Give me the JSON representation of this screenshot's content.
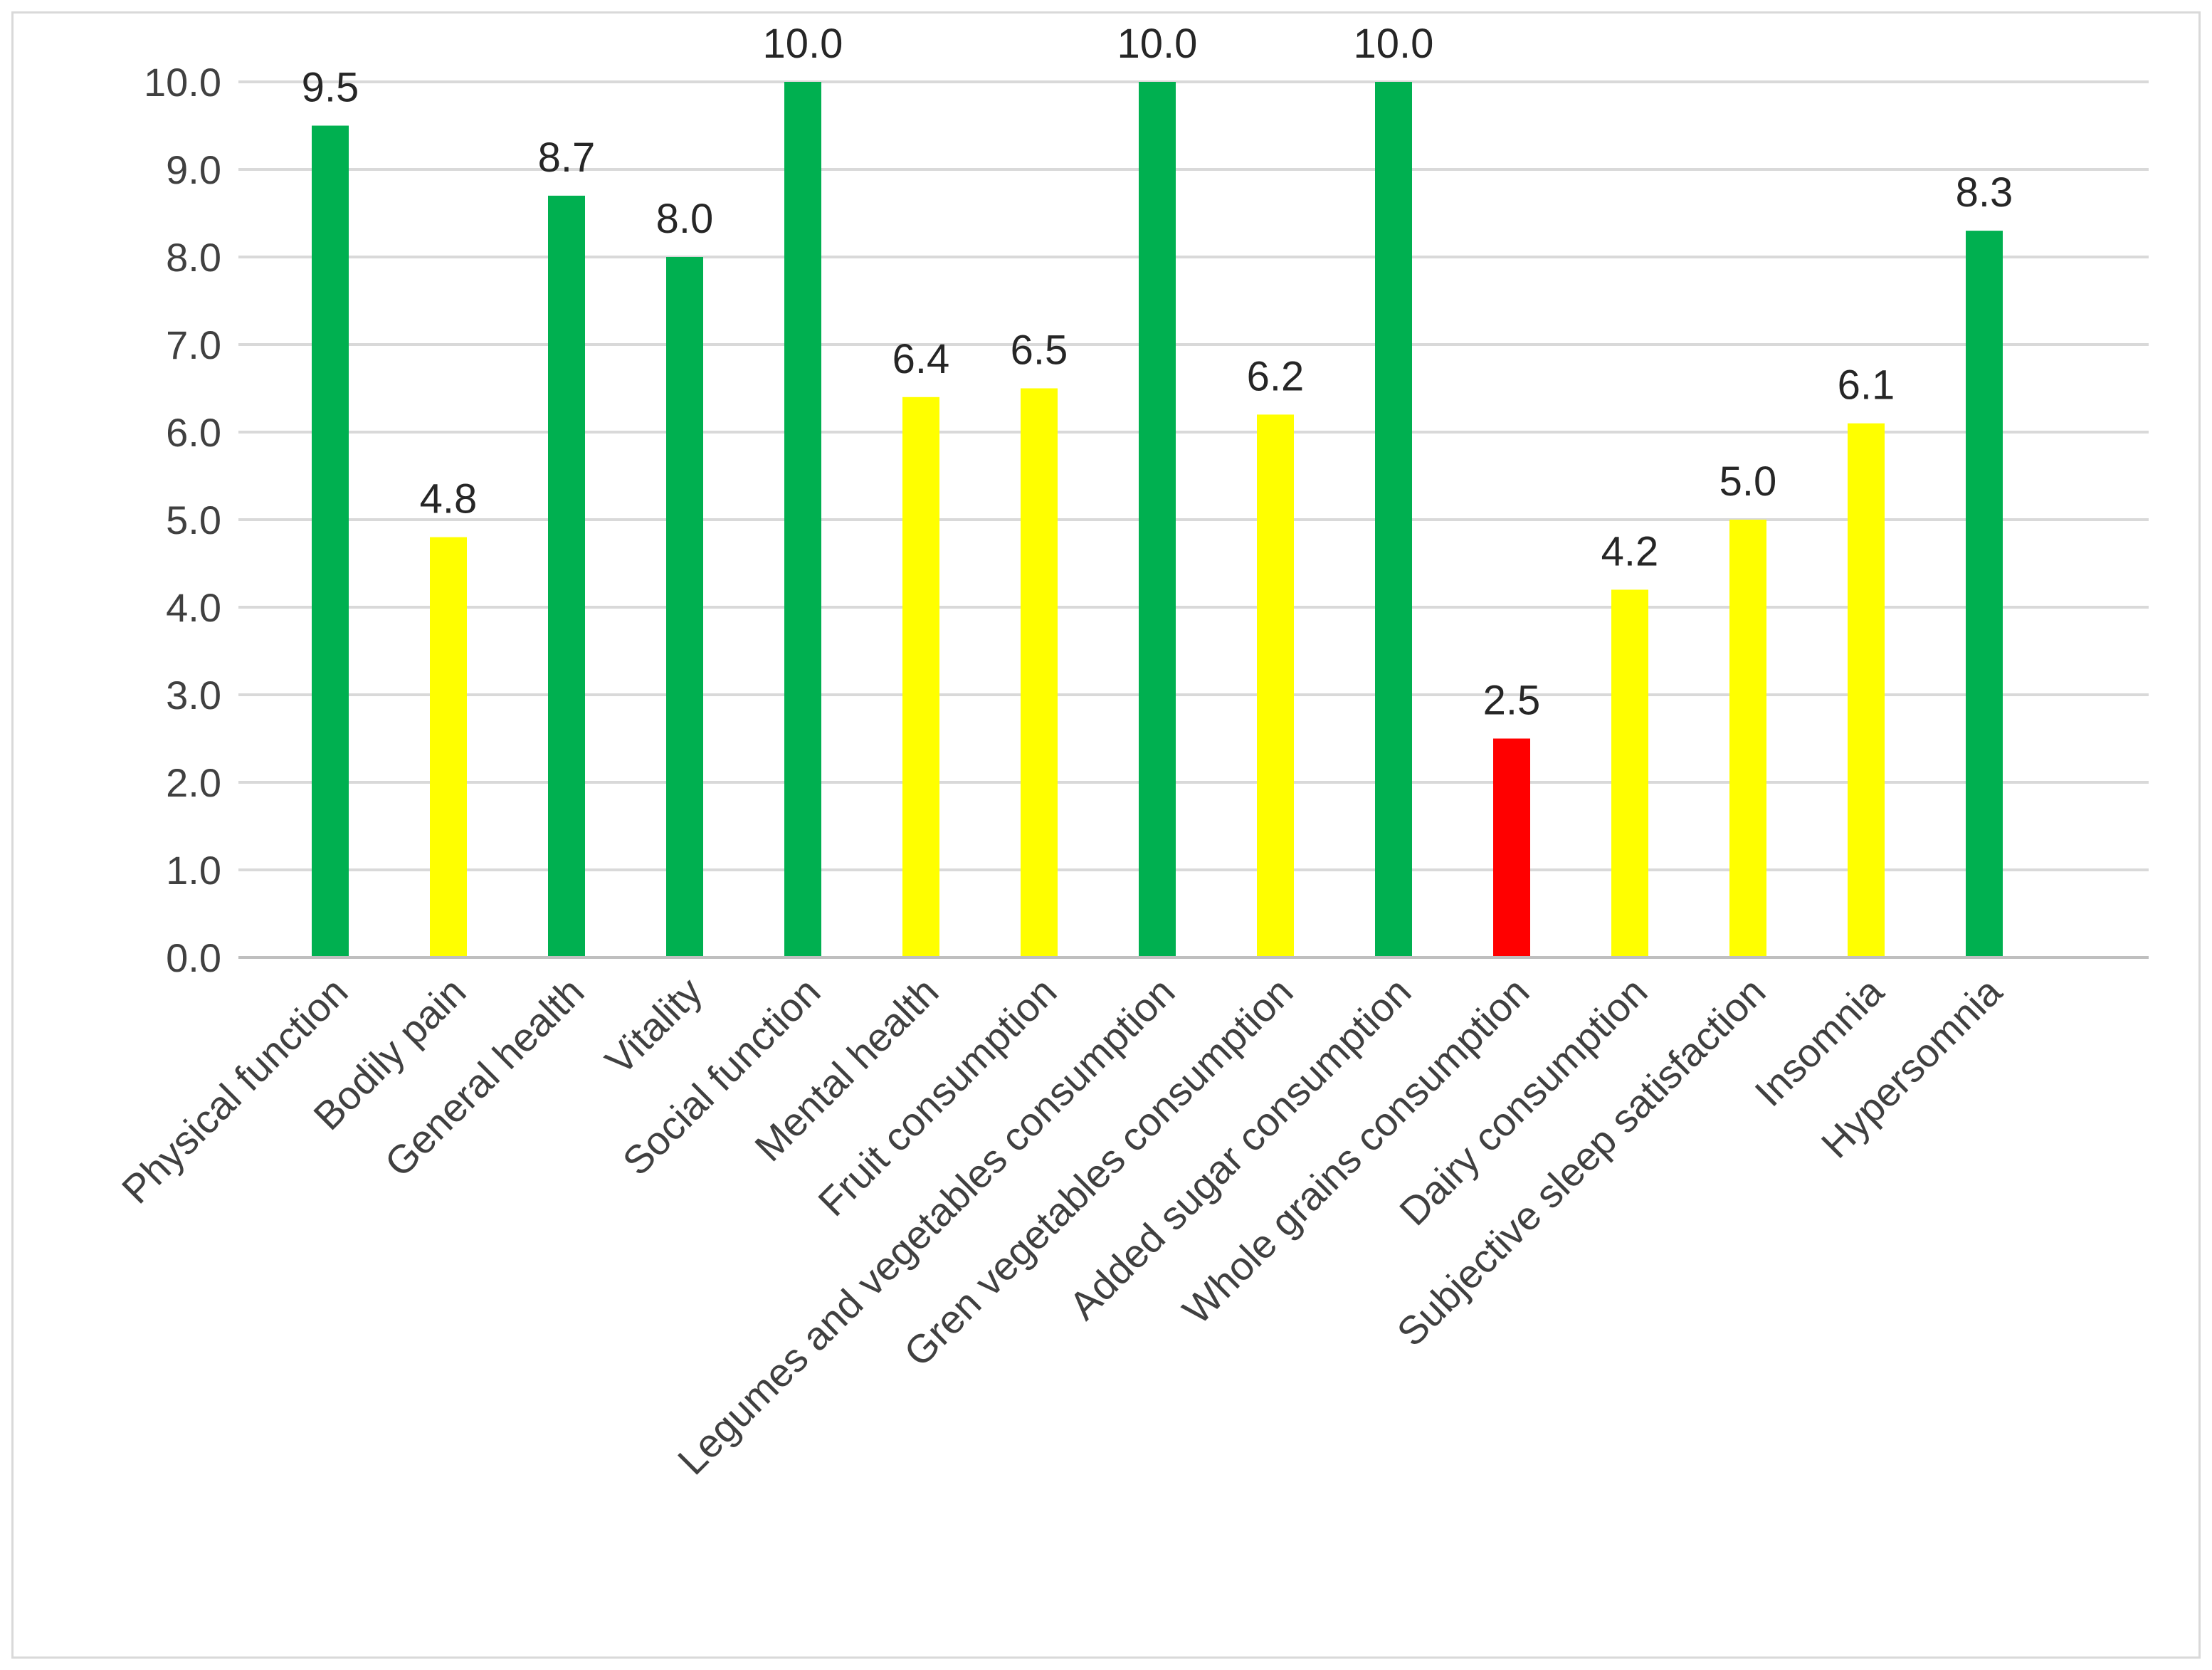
{
  "chart_data": {
    "type": "bar",
    "title": "",
    "xlabel": "",
    "ylabel": "",
    "ylim": [
      0,
      10
    ],
    "grid": true,
    "legend": "none",
    "ytick_labels": [
      "0.0",
      "1.0",
      "2.0",
      "3.0",
      "4.0",
      "5.0",
      "6.0",
      "7.0",
      "8.0",
      "9.0",
      "10.0"
    ],
    "categories": [
      "Physical function",
      "Bodily pain",
      "General health",
      "Vitality",
      "Social function",
      "Mental health",
      "Fruit consumption",
      "Legumes and vegetables consumption",
      "Gren vegetables consumption",
      "Added sugar consumption",
      "Whole grains consumption",
      "Dairy consumption",
      "Subjective sleep satisfaction",
      "Insomnia",
      "Hypersomnia"
    ],
    "values": [
      9.5,
      4.8,
      8.7,
      8.0,
      10.0,
      6.4,
      6.5,
      10.0,
      6.2,
      10.0,
      2.5,
      4.2,
      5.0,
      6.1,
      8.3
    ],
    "data_labels": [
      "9.5",
      "4.8",
      "8.7",
      "8.0",
      "10.0",
      "6.4",
      "6.5",
      "10.0",
      "6.2",
      "10.0",
      "2.5",
      "4.2",
      "5.0",
      "6.1",
      "8.3"
    ],
    "bar_colors": [
      "#00b050",
      "#ffff00",
      "#00b050",
      "#00b050",
      "#00b050",
      "#ffff00",
      "#ffff00",
      "#00b050",
      "#ffff00",
      "#00b050",
      "#ff0000",
      "#ffff00",
      "#ffff00",
      "#ffff00",
      "#00b050"
    ]
  }
}
